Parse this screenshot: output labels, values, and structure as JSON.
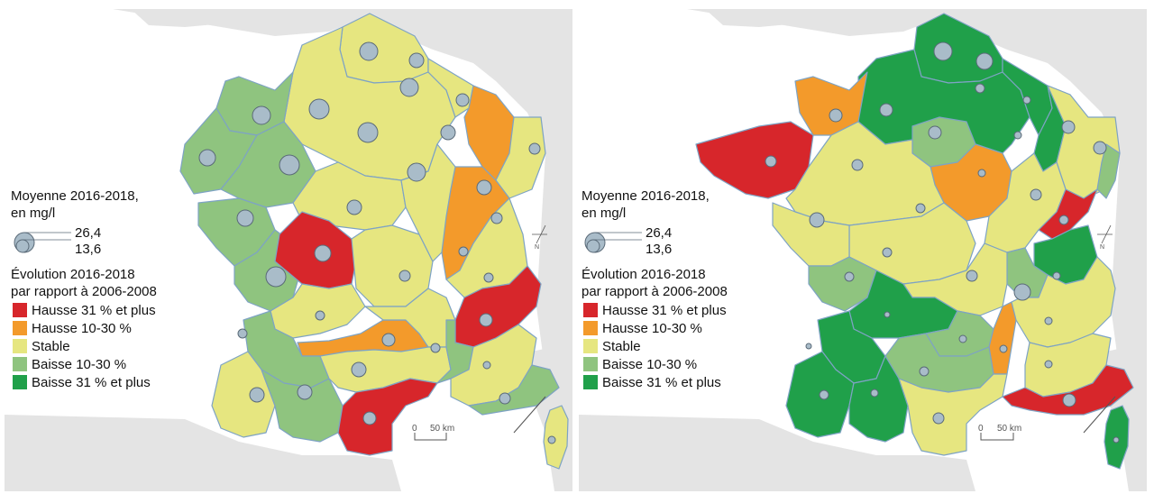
{
  "legend": {
    "size_title_line1": "Moyenne 2016-2018,",
    "size_title_line2": "en mg/l",
    "size_value_max": "26,4",
    "size_value_min": "13,6",
    "color_title_line1": "Évolution 2016-2018",
    "color_title_line2": "par rapport à 2006-2008",
    "classes": [
      {
        "label": "Hausse 31 % et plus",
        "color": "#d7262b"
      },
      {
        "label": "Hausse 10-30 %",
        "color": "#f39a2b"
      },
      {
        "label": "Stable",
        "color": "#e6e680"
      },
      {
        "label": "Baisse 10-30 %",
        "color": "#8fc47f"
      },
      {
        "label": "Baisse 31 % et plus",
        "color": "#20a04a"
      }
    ]
  },
  "scale": {
    "zero": "0",
    "label": "50 km"
  },
  "north": "N",
  "colors": {
    "neighbor": "#e4e4e4",
    "sea": "#ffffff",
    "border": "#7ea3c4",
    "circle_fill": "#a9bcc9",
    "circle_stroke": "#5a6a78"
  }
}
